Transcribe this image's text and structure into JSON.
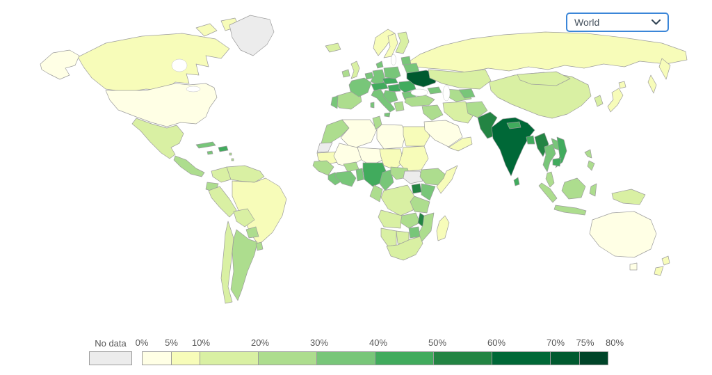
{
  "controls": {
    "region_selector": {
      "value": "World",
      "border_color": "#3b86d8",
      "icon": "chevron-down-icon"
    }
  },
  "legend": {
    "no_data_label": "No data",
    "no_data_color": "#ececec",
    "tick_labels": [
      "0%",
      "5%",
      "10%",
      "20%",
      "30%",
      "40%",
      "50%",
      "60%",
      "70%",
      "75%",
      "80%"
    ],
    "tick_values": [
      0,
      5,
      10,
      20,
      30,
      40,
      50,
      60,
      70,
      75,
      80
    ],
    "segments": [
      {
        "from": 0,
        "to": 5,
        "color": "#ffffe5"
      },
      {
        "from": 5,
        "to": 10,
        "color": "#f7fcb9"
      },
      {
        "from": 10,
        "to": 20,
        "color": "#d9f0a3"
      },
      {
        "from": 20,
        "to": 30,
        "color": "#addd8e"
      },
      {
        "from": 30,
        "to": 40,
        "color": "#78c679"
      },
      {
        "from": 40,
        "to": 50,
        "color": "#41ab5d"
      },
      {
        "from": 50,
        "to": 60,
        "color": "#238443"
      },
      {
        "from": 60,
        "to": 70,
        "color": "#006837"
      },
      {
        "from": 70,
        "to": 75,
        "color": "#005a2f"
      },
      {
        "from": 75,
        "to": 80,
        "color": "#004529"
      }
    ]
  },
  "map": {
    "type": "choropleth",
    "ocean_color": "#ffffff",
    "border_color": "#9c9c9c",
    "region_colors": {
      "greenland": "#ececec",
      "canada": "#f7fcb9",
      "united-states": "#ffffe5",
      "mexico": "#d9f0a3",
      "central-america": "#addd8e",
      "cuba": "#78c679",
      "jamaica": "#78c679",
      "hispaniola": "#41ab5d",
      "lesser-antilles": "#addd8e",
      "colombia": "#d9f0a3",
      "venezuela": "#d9f0a3",
      "ecuador": "#addd8e",
      "peru": "#d9f0a3",
      "brazil": "#f7fcb9",
      "bolivia": "#d9f0a3",
      "paraguay": "#addd8e",
      "uruguay": "#addd8e",
      "argentina": "#addd8e",
      "chile": "#d9f0a3",
      "iceland": "#d9f0a3",
      "ireland": "#addd8e",
      "united-kingdom": "#d9f0a3",
      "norway": "#f7fcb9",
      "sweden": "#f7fcb9",
      "finland": "#d9f0a3",
      "denmark": "#78c679",
      "baltics": "#78c679",
      "spain": "#addd8e",
      "portugal": "#78c679",
      "france": "#78c679",
      "benelux": "#78c679",
      "germany": "#78c679",
      "alpine": "#41ab5d",
      "czech-slovakia": "#41ab5d",
      "poland": "#78c679",
      "hungary": "#41ab5d",
      "italy": "#78c679",
      "balkans": "#78c679",
      "greece": "#addd8e",
      "romania": "#41ab5d",
      "bulgaria": "#78c679",
      "belarus": "#78c679",
      "ukraine": "#005a2f",
      "russia": "#f7fcb9",
      "kazakhstan": "#d9f0a3",
      "caucasus": "#78c679",
      "central-asia": "#addd8e",
      "uzbekistan": "#78c679",
      "turkey": "#addd8e",
      "levant-iraq": "#addd8e",
      "iran": "#d9f0a3",
      "saudi-arabia": "#ffffe5",
      "yemen-oman": "#f7fcb9",
      "afghanistan": "#addd8e",
      "pakistan": "#238443",
      "india": "#006837",
      "nepal": "#41ab5d",
      "bangladesh": "#41ab5d",
      "sri-lanka": "#41ab5d",
      "china": "#d9f0a3",
      "mongolia": "#d9f0a3",
      "korea": "#d9f0a3",
      "japan": "#f7fcb9",
      "myanmar": "#238443",
      "thailand": "#78c679",
      "laos": "#78c679",
      "vietnam": "#41ab5d",
      "cambodia": "#41ab5d",
      "malaysia": "#addd8e",
      "indonesia": "#addd8e",
      "philippines": "#addd8e",
      "new-guinea": "#d9f0a3",
      "australia": "#ffffe5",
      "new-zealand": "#f7fcb9",
      "morocco": "#addd8e",
      "western-sahara": "#ececec",
      "algeria": "#ffffe5",
      "tunisia": "#addd8e",
      "libya": "#ffffe5",
      "egypt": "#f7fcb9",
      "mauritania": "#f7fcb9",
      "mali": "#ffffe5",
      "niger": "#ffffe5",
      "chad": "#f7fcb9",
      "sudan": "#f7fcb9",
      "senegal-guinea": "#addd8e",
      "sierra-leone-liberia": "#78c679",
      "burkina-faso": "#addd8e",
      "cote-divoire-ghana": "#78c679",
      "togo-benin": "#78c679",
      "nigeria": "#41ab5d",
      "cameroon": "#78c679",
      "central-african-republic": "#addd8e",
      "south-sudan": "#ececec",
      "ethiopia": "#addd8e",
      "somalia": "#f7fcb9",
      "uganda": "#238443",
      "kenya": "#78c679",
      "dr-congo": "#d9f0a3",
      "congo-gabon": "#addd8e",
      "tanzania": "#addd8e",
      "angola": "#d9f0a3",
      "zambia": "#addd8e",
      "malawi": "#238443",
      "mozambique": "#addd8e",
      "zimbabwe": "#78c679",
      "botswana": "#d9f0a3",
      "namibia": "#d9f0a3",
      "south-africa": "#d9f0a3",
      "madagascar": "#f7fcb9"
    }
  }
}
